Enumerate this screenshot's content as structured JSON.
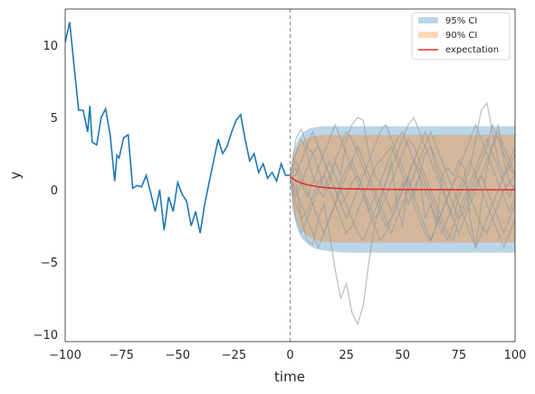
{
  "chart_data": {
    "type": "line",
    "xlabel": "time",
    "ylabel": "y",
    "xlim": [
      -100,
      100
    ],
    "ylim": [
      -10.5,
      12.5
    ],
    "grid": false,
    "legend_position": "top-right",
    "xticks": [
      -100,
      -75,
      -50,
      -25,
      0,
      25,
      50,
      75,
      100
    ],
    "xtick_labels": [
      "−100",
      "−75",
      "−50",
      "−25",
      "0",
      "25",
      "50",
      "75",
      "100"
    ],
    "yticks": [
      -10,
      -5,
      0,
      5,
      10
    ],
    "ytick_labels": [
      "−10",
      "−5",
      "0",
      "5",
      "10"
    ],
    "vline_x": 0,
    "history": {
      "color": "#1f77b4",
      "x": [
        -100,
        -98,
        -96,
        -94,
        -92,
        -90,
        -89,
        -88,
        -86,
        -84,
        -82,
        -80,
        -78,
        -77,
        -76,
        -74,
        -72,
        -70,
        -68,
        -66,
        -64,
        -62,
        -60,
        -58,
        -56,
        -54,
        -52,
        -50,
        -48,
        -46,
        -44,
        -42,
        -40,
        -38,
        -36,
        -34,
        -32,
        -30,
        -28,
        -26,
        -24,
        -22,
        -20,
        -18,
        -16,
        -14,
        -12,
        -10,
        -8,
        -6,
        -4,
        -2,
        0
      ],
      "y": [
        10.2,
        11.6,
        8.5,
        5.5,
        5.5,
        4.0,
        5.8,
        3.3,
        3.1,
        5.0,
        5.6,
        3.8,
        0.6,
        2.4,
        2.2,
        3.6,
        3.8,
        0.1,
        0.3,
        0.2,
        1.0,
        -0.2,
        -1.5,
        0.0,
        -2.8,
        -0.5,
        -1.5,
        0.5,
        -0.3,
        -0.8,
        -2.5,
        -1.5,
        -3.0,
        -1.0,
        0.5,
        2.0,
        3.5,
        2.5,
        3.0,
        4.0,
        4.8,
        5.2,
        3.5,
        2.0,
        2.5,
        1.2,
        1.8,
        0.8,
        1.2,
        0.6,
        1.8,
        1.0,
        1.0
      ]
    },
    "forecast_x": [
      0,
      1,
      2,
      3,
      4,
      5,
      6,
      8,
      10,
      12,
      15,
      20,
      25,
      30,
      40,
      50,
      60,
      70,
      80,
      90,
      100
    ],
    "ci95": {
      "color": "#1f77b4",
      "label": "95% CI",
      "lower": [
        0.9,
        -1.3,
        -2.0,
        -2.6,
        -3.0,
        -3.3,
        -3.5,
        -3.8,
        -4.0,
        -4.1,
        -4.2,
        -4.3,
        -4.35,
        -4.35,
        -4.35,
        -4.35,
        -4.35,
        -4.35,
        -4.35,
        -4.35,
        -4.35
      ],
      "upper": [
        0.9,
        2.3,
        2.9,
        3.3,
        3.6,
        3.8,
        4.0,
        4.2,
        4.3,
        4.35,
        4.4,
        4.4,
        4.4,
        4.4,
        4.4,
        4.4,
        4.4,
        4.4,
        4.4,
        4.4,
        4.4
      ]
    },
    "ci90": {
      "color": "#ff7f0e",
      "label": "90% CI",
      "lower": [
        0.9,
        -0.9,
        -1.5,
        -2.0,
        -2.4,
        -2.7,
        -2.9,
        -3.2,
        -3.4,
        -3.5,
        -3.6,
        -3.65,
        -3.65,
        -3.65,
        -3.65,
        -3.65,
        -3.65,
        -3.65,
        -3.65,
        -3.65,
        -3.65
      ],
      "upper": [
        0.9,
        2.0,
        2.5,
        2.9,
        3.1,
        3.3,
        3.4,
        3.6,
        3.7,
        3.75,
        3.8,
        3.8,
        3.8,
        3.8,
        3.8,
        3.8,
        3.8,
        3.8,
        3.8,
        3.8,
        3.8
      ]
    },
    "expectation": {
      "color": "#e03030",
      "label": "expectation",
      "y": [
        0.9,
        0.78,
        0.68,
        0.6,
        0.53,
        0.47,
        0.42,
        0.34,
        0.28,
        0.22,
        0.16,
        0.1,
        0.07,
        0.05,
        0.03,
        0.02,
        0.01,
        0.01,
        0.0,
        0.0,
        0.0
      ]
    },
    "sample_paths": {
      "color": "#9a9a9a",
      "x_step": 2.5,
      "paths": [
        [
          1.2,
          0.5,
          -2.0,
          -3.5,
          -3.8,
          -2.0,
          -1.0,
          -3.0,
          -5.5,
          -7.5,
          -6.5,
          -8.5,
          -9.3,
          -8.0,
          -5.0,
          -2.5,
          -1.0,
          0.5,
          2.0,
          -1.0,
          -2.5,
          1.0,
          -0.5,
          1.0,
          -2.0,
          -1.0,
          -2.5,
          1.0,
          1.5,
          1.0,
          2.0,
          1.5,
          -2.0,
          -4.0,
          -1.0,
          1.5,
          3.0,
          4.5,
          2.0,
          0.5,
          1.0
        ],
        [
          0.9,
          3.5,
          4.2,
          3.0,
          2.5,
          1.5,
          0.0,
          1.0,
          2.0,
          1.0,
          3.5,
          4.5,
          5.0,
          4.8,
          2.5,
          1.0,
          0.5,
          -0.5,
          -1.5,
          -0.5,
          0.5,
          -1.0,
          0.0,
          1.0,
          2.5,
          3.0,
          1.5,
          0.5,
          -1.0,
          -2.0,
          -0.5,
          0.5,
          1.5,
          3.5,
          5.5,
          6.0,
          4.0,
          2.0,
          1.0,
          1.5,
          2.5
        ],
        [
          0.8,
          -1.0,
          -2.0,
          -1.5,
          -0.5,
          0.5,
          1.0,
          0.0,
          -1.0,
          -2.0,
          -3.0,
          -2.5,
          -1.5,
          -0.5,
          0.5,
          1.5,
          2.0,
          2.5,
          3.0,
          2.0,
          1.0,
          0.0,
          -1.0,
          -2.0,
          -3.0,
          -3.5,
          -2.5,
          -1.5,
          -0.5,
          0.5,
          1.0,
          0.5,
          -0.5,
          -1.5,
          -2.5,
          -3.0,
          -2.0,
          -1.0,
          0.0,
          0.5,
          0.0
        ],
        [
          1.0,
          2.0,
          1.0,
          0.0,
          -1.0,
          -2.0,
          -3.0,
          -2.0,
          -1.0,
          0.5,
          1.5,
          2.0,
          1.0,
          0.0,
          -1.0,
          -2.0,
          -1.5,
          -0.5,
          0.5,
          1.5,
          2.5,
          3.5,
          3.0,
          2.0,
          1.0,
          0.0,
          -1.0,
          -2.0,
          -3.0,
          -3.5,
          -2.0,
          -1.0,
          0.0,
          1.0,
          2.0,
          3.0,
          4.5,
          3.5,
          2.5,
          1.5,
          1.0
        ],
        [
          0.9,
          -0.5,
          0.5,
          1.5,
          2.5,
          3.0,
          2.0,
          1.0,
          0.0,
          -1.0,
          -0.5,
          0.5,
          1.0,
          0.0,
          -1.5,
          -2.5,
          -3.5,
          -3.0,
          -2.0,
          -1.0,
          0.0,
          1.0,
          2.0,
          3.0,
          4.0,
          3.0,
          2.0,
          1.0,
          0.0,
          -1.0,
          -2.0,
          -1.5,
          -0.5,
          0.5,
          1.0,
          0.0,
          -1.0,
          -2.0,
          -3.0,
          -2.0,
          -1.0
        ],
        [
          1.1,
          2.5,
          3.5,
          2.5,
          1.0,
          0.0,
          -0.5,
          0.5,
          2.0,
          3.0,
          4.0,
          3.5,
          2.5,
          1.5,
          0.5,
          -0.5,
          -1.5,
          -2.5,
          -2.0,
          -1.0,
          0.0,
          1.0,
          2.0,
          1.5,
          0.5,
          -0.5,
          -1.5,
          -2.5,
          -3.5,
          -2.5,
          -1.5,
          -0.5,
          0.5,
          1.5,
          2.5,
          3.5,
          2.5,
          1.5,
          0.5,
          -0.5,
          0.5
        ],
        [
          0.9,
          0.0,
          -1.0,
          -2.0,
          -3.0,
          -4.0,
          -3.0,
          -2.0,
          -1.0,
          0.0,
          1.0,
          2.0,
          3.0,
          2.0,
          1.0,
          0.0,
          -1.0,
          -2.0,
          -3.0,
          -2.0,
          -1.0,
          0.0,
          1.0,
          2.0,
          3.0,
          4.0,
          3.0,
          2.0,
          1.0,
          0.0,
          -1.0,
          -2.0,
          -3.0,
          -4.0,
          -3.0,
          -2.0,
          -1.0,
          0.0,
          1.0,
          2.0,
          3.0
        ],
        [
          1.0,
          1.5,
          0.5,
          -0.5,
          0.5,
          1.5,
          2.5,
          3.5,
          4.5,
          3.5,
          2.5,
          1.5,
          0.5,
          -0.5,
          -1.5,
          -0.5,
          0.5,
          1.5,
          2.5,
          3.5,
          4.0,
          3.0,
          2.0,
          1.0,
          0.0,
          -1.0,
          -2.0,
          -3.0,
          -2.0,
          -1.0,
          0.0,
          1.0,
          2.0,
          1.0,
          0.0,
          -1.0,
          -2.0,
          -3.0,
          -4.0,
          -3.0,
          -2.0
        ],
        [
          0.8,
          -2.0,
          -3.0,
          -2.0,
          -1.0,
          0.0,
          1.0,
          2.0,
          1.0,
          0.0,
          -1.0,
          -2.0,
          -3.0,
          -3.5,
          -2.5,
          -1.5,
          -0.5,
          0.5,
          1.5,
          2.5,
          3.5,
          4.5,
          5.0,
          4.0,
          3.0,
          2.0,
          1.0,
          0.0,
          -1.0,
          -2.0,
          -3.0,
          -2.0,
          -1.0,
          0.0,
          1.0,
          2.0,
          3.0,
          4.0,
          3.0,
          2.0,
          1.0
        ],
        [
          0.9,
          1.0,
          2.0,
          3.0,
          4.0,
          3.0,
          2.0,
          1.0,
          0.0,
          -1.0,
          -2.0,
          -1.0,
          0.0,
          1.0,
          2.0,
          3.0,
          4.0,
          4.5,
          3.5,
          2.5,
          1.5,
          0.5,
          -0.5,
          -1.5,
          -2.5,
          -3.5,
          -2.5,
          -1.5,
          -0.5,
          0.5,
          1.5,
          2.5,
          3.5,
          4.5,
          3.5,
          2.5,
          1.5,
          0.5,
          -0.5,
          -1.5,
          -0.5
        ]
      ]
    }
  }
}
